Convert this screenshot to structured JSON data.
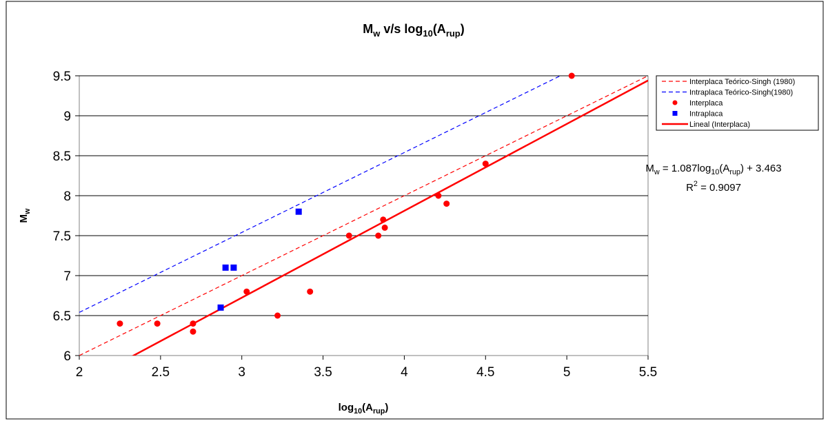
{
  "chart_data": {
    "type": "scatter",
    "title": {
      "main": "M",
      "main_sub": "w",
      "mid": " v/s log",
      "mid_sub": "10",
      "paren_open": "(A",
      "paren_sub": "rup",
      "paren_close": ")"
    },
    "xlabel": {
      "main": "log",
      "sub1": "10",
      "mid": "(A",
      "sub2": "rup",
      "close": ")"
    },
    "ylabel": {
      "main": "M",
      "sub": "w"
    },
    "xlim": [
      2,
      5.5
    ],
    "ylim": [
      6,
      9.5
    ],
    "x_ticks": [
      "2",
      "2.5",
      "3",
      "3.5",
      "4",
      "4.5",
      "5",
      "5.5"
    ],
    "y_ticks": [
      "6",
      "6.5",
      "7",
      "7.5",
      "8",
      "8.5",
      "9",
      "9.5"
    ],
    "grid": "horizontal",
    "legend_position": "right",
    "series": [
      {
        "name": "Interplaca Teórico-Singh (1980)",
        "kind": "line",
        "style": "dashed",
        "color": "#ff0000",
        "line": {
          "slope": 1.0,
          "intercept": 4.0
        }
      },
      {
        "name": "Intraplaca Teórico-Singh(1980)",
        "kind": "line",
        "style": "dashed",
        "color": "#0000ff",
        "line": {
          "slope": 1.0,
          "intercept": 4.54
        }
      },
      {
        "name": "Interplaca",
        "kind": "scatter",
        "marker": "circle",
        "color": "#ff0000",
        "points": [
          [
            2.25,
            6.4
          ],
          [
            2.48,
            6.4
          ],
          [
            2.7,
            6.4
          ],
          [
            2.7,
            6.3
          ],
          [
            3.03,
            6.8
          ],
          [
            3.22,
            6.5
          ],
          [
            3.42,
            6.8
          ],
          [
            3.66,
            7.5
          ],
          [
            3.84,
            7.5
          ],
          [
            3.87,
            7.7
          ],
          [
            3.88,
            7.6
          ],
          [
            4.21,
            8.0
          ],
          [
            4.26,
            7.9
          ],
          [
            4.5,
            8.4
          ],
          [
            5.03,
            9.5
          ]
        ]
      },
      {
        "name": "Intraplaca",
        "kind": "scatter",
        "marker": "square",
        "color": "#0000ff",
        "points": [
          [
            2.87,
            6.6
          ],
          [
            2.9,
            7.1
          ],
          [
            2.95,
            7.1
          ],
          [
            3.35,
            7.8
          ]
        ]
      },
      {
        "name": "Lineal (Interplaca)",
        "kind": "line",
        "style": "solid",
        "color": "#ff0000",
        "line": {
          "slope": 1.087,
          "intercept": 3.463
        }
      }
    ],
    "annotation": {
      "eq_m": "M",
      "eq_m_sub": "w",
      "eq_mid": " = 1.087log",
      "eq_log_sub": "10",
      "eq_paren": "(A",
      "eq_paren_sub": "rup",
      "eq_end": ") + 3.463",
      "r2_label": "R",
      "r2_sup": "2",
      "r2_value": " = 0.9097"
    }
  }
}
